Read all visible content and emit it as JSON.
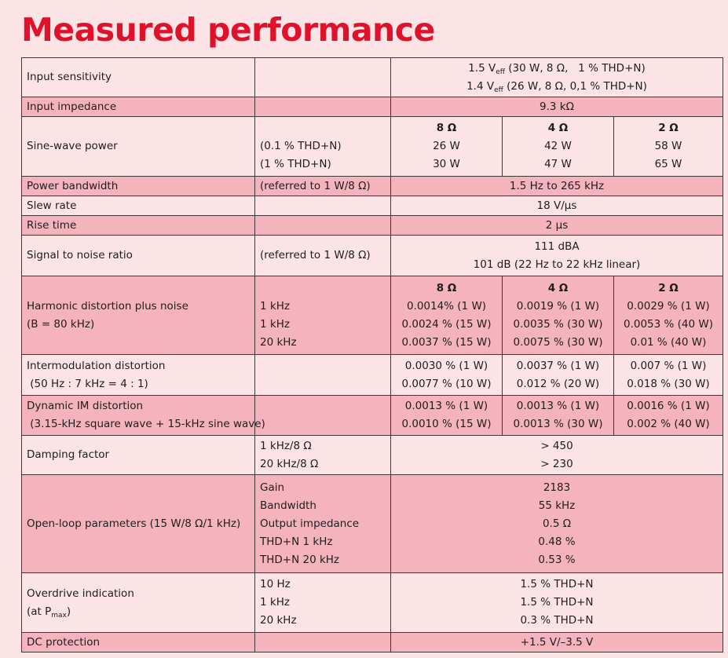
{
  "title": "Measured performance",
  "rows": {
    "input_sensitivity": {
      "label": "Input sensitivity",
      "v1_pre": "1.5 V",
      "v1_sub": "eff",
      "v1_post": " (30 W, 8 Ω,   1 % THD+N)",
      "v2_pre": "1.4 V",
      "v2_sub": "eff",
      "v2_post": " (26 W, 8 Ω, 0,1 % THD+N)"
    },
    "input_impedance": {
      "label": "Input impedance",
      "value": "9.3 kΩ"
    },
    "sine_wave_power": {
      "label": "Sine-wave power",
      "cond1": "(0.1 % THD+N)",
      "cond2": "(1 % THD+N)",
      "headers": [
        "8 Ω",
        "4 Ω",
        "2 Ω"
      ],
      "row1": [
        "26 W",
        "42 W",
        "58 W"
      ],
      "row2": [
        "30 W",
        "47 W",
        "65 W"
      ]
    },
    "power_bandwidth": {
      "label": "Power bandwidth",
      "cond": "(referred to 1 W/8 Ω)",
      "value": "1.5 Hz  to 265 kHz"
    },
    "slew_rate": {
      "label": "Slew rate",
      "value": "18 V/µs"
    },
    "rise_time": {
      "label": "Rise time",
      "value": "2 µs"
    },
    "snr": {
      "label": "Signal to noise ratio",
      "cond": "(referred to 1 W/8 Ω)",
      "v1": "111 dBA",
      "v2": "101 dB (22 Hz to 22 kHz linear)"
    },
    "thd_n": {
      "label1": "Harmonic distortion plus noise",
      "label2": "(B = 80 kHz)",
      "conds": [
        "1 kHz",
        "1 kHz",
        "20 kHz"
      ],
      "headers": [
        "8 Ω",
        "4 Ω",
        "2 Ω"
      ],
      "col_8": [
        "0.0014% (1 W)",
        "0.0024 % (15 W)",
        "0.0037 % (15 W)"
      ],
      "col_4": [
        "0.0019 % (1 W)",
        "0.0035 % (30 W)",
        "0.0075 % (30 W)"
      ],
      "col_2": [
        "0.0029 % (1 W)",
        "0.0053 % (40 W)",
        "0.01 % (40 W)"
      ]
    },
    "imd": {
      "label1": "Intermodulation distortion",
      "label2": " (50 Hz : 7 kHz = 4 : 1)",
      "col_8": [
        "0.0030 % (1 W)",
        "0.0077 % (10 W)"
      ],
      "col_4": [
        "0.0037 % (1 W)",
        "0.012 % (20 W)"
      ],
      "col_2": [
        "0.007 % (1 W)",
        "0.018 % (30 W)"
      ]
    },
    "dim": {
      "label1": "Dynamic IM distortion",
      "label2": " (3.15-kHz square wave + 15-kHz sine wave)",
      "col_8": [
        "0.0013 % (1 W)",
        "0.0010 % (15 W)"
      ],
      "col_4": [
        "0.0013 % (1 W)",
        "0.0013 % (30 W)"
      ],
      "col_2": [
        "0.0016 % (1 W)",
        "0.002 % (40 W)"
      ]
    },
    "damping": {
      "label": "Damping factor",
      "conds": [
        "1 kHz/8 Ω",
        "20 kHz/8 Ω"
      ],
      "values": [
        "> 450",
        "> 230"
      ]
    },
    "open_loop": {
      "label": "Open-loop parameters (15 W/8 Ω/1 kHz)",
      "conds": [
        "Gain",
        "Bandwidth",
        "Output impedance",
        "THD+N 1 kHz",
        "THD+N 20 kHz"
      ],
      "values": [
        "2183",
        "55 kHz",
        "0.5 Ω",
        "0.48 %",
        "0.53 %"
      ]
    },
    "overdrive": {
      "label1": "Overdrive indication",
      "label2_pre": "(at P",
      "label2_sub": "max",
      "label2_post": ")",
      "conds": [
        "10 Hz",
        "1 kHz",
        "20 kHz"
      ],
      "values": [
        "1.5 % THD+N",
        "1.5 % THD+N",
        "0.3 % THD+N"
      ]
    },
    "dc_protection": {
      "label": "DC protection",
      "value": "+1.5 V/–3.5 V"
    }
  }
}
